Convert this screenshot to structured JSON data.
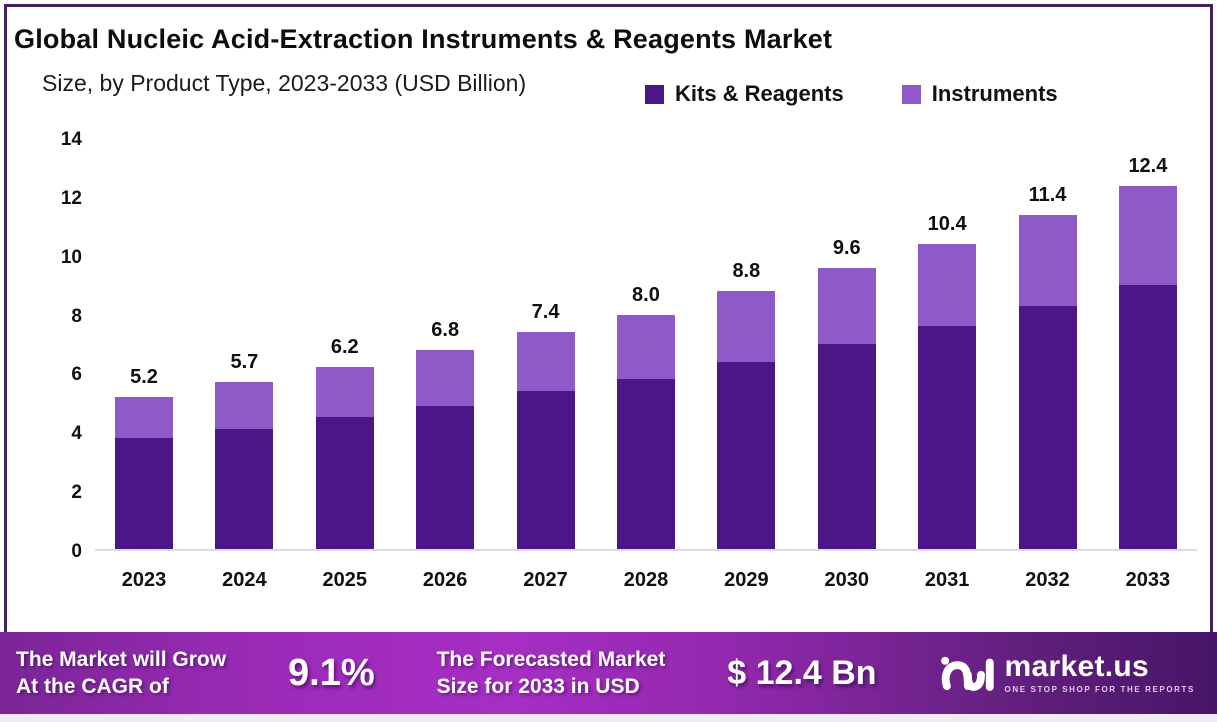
{
  "header": {
    "title": "Global Nucleic Acid-Extraction Instruments & Reagents Market",
    "subtitle": "Size, by Product Type, 2023-2033 (USD Billion)"
  },
  "legend": [
    {
      "label": "Kits & Reagents",
      "color": "#4b1787"
    },
    {
      "label": "Instruments",
      "color": "#8d5ac8"
    }
  ],
  "chart_data": {
    "type": "bar",
    "stacked": true,
    "title": "Global Nucleic Acid-Extraction Instruments & Reagents Market Size, by Product Type, 2023-2033 (USD Billion)",
    "categories": [
      "2023",
      "2024",
      "2025",
      "2026",
      "2027",
      "2028",
      "2029",
      "2030",
      "2031",
      "2032",
      "2033"
    ],
    "series": [
      {
        "name": "Kits & Reagents",
        "color": "#4b1787",
        "values": [
          3.8,
          4.1,
          4.5,
          4.9,
          5.4,
          5.8,
          6.4,
          7.0,
          7.6,
          8.3,
          9.0
        ]
      },
      {
        "name": "Instruments",
        "color": "#8d5ac8",
        "values": [
          1.4,
          1.6,
          1.7,
          1.9,
          2.0,
          2.2,
          2.4,
          2.6,
          2.8,
          3.1,
          3.4
        ]
      }
    ],
    "totals": [
      5.2,
      5.7,
      6.2,
      6.8,
      7.4,
      8.0,
      8.8,
      9.6,
      10.4,
      11.4,
      12.4
    ],
    "total_labels": [
      "5.2",
      "5.7",
      "6.2",
      "6.8",
      "7.4",
      "8.0",
      "8.8",
      "9.6",
      "10.4",
      "11.4",
      "12.4"
    ],
    "xlabel": "",
    "ylabel": "",
    "ylim": [
      0,
      14
    ],
    "yticks": [
      0,
      2,
      4,
      6,
      8,
      10,
      12,
      14
    ],
    "grid": false,
    "legend_position": "top-right"
  },
  "banner": {
    "growth_line1": "The Market will Grow",
    "growth_line2": "At the CAGR of",
    "cagr_value": "9.1%",
    "forecast_line1": "The Forecasted Market",
    "forecast_line2": "Size for 2033 in USD",
    "forecast_value": "$ 12.4 Bn",
    "brand_name": "market.us",
    "brand_tagline": "ONE STOP SHOP FOR THE REPORTS"
  },
  "colors": {
    "kits": "#4b1787",
    "instruments": "#8d5ac8",
    "frame_border": "#43215c",
    "axis_line": "#dcdbe0",
    "banner_left": "#7b2596",
    "banner_mid": "#a62ec4",
    "banner_right": "#471566",
    "text": "#0f0f0f",
    "banner_text": "#ffffff"
  }
}
